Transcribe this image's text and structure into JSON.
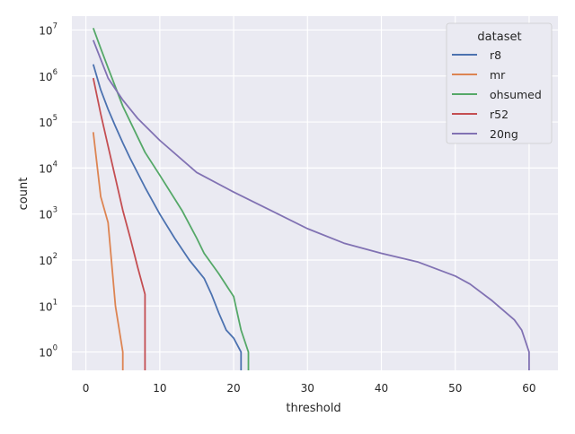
{
  "chart_data": {
    "type": "line",
    "xlabel": "threshold",
    "ylabel": "count",
    "xlim": [
      -1.9,
      63.9
    ],
    "x_ticks": [
      0,
      10,
      20,
      30,
      40,
      50,
      60
    ],
    "ylim": [
      0.4,
      20000000
    ],
    "y_scale": "log",
    "y_ticks": [
      {
        "value": 1,
        "base": "10",
        "exp": "0"
      },
      {
        "value": 10,
        "base": "10",
        "exp": "1"
      },
      {
        "value": 100,
        "base": "10",
        "exp": "2"
      },
      {
        "value": 1000,
        "base": "10",
        "exp": "3"
      },
      {
        "value": 10000,
        "base": "10",
        "exp": "4"
      },
      {
        "value": 100000,
        "base": "10",
        "exp": "5"
      },
      {
        "value": 1000000,
        "base": "10",
        "exp": "6"
      },
      {
        "value": 10000000,
        "base": "10",
        "exp": "7"
      }
    ],
    "grid": true,
    "legend": {
      "title": "dataset",
      "position": "top-right"
    },
    "series": [
      {
        "name": "r8",
        "color": "#4c72b0",
        "x": [
          1,
          2,
          3,
          4,
          5,
          6,
          8,
          10,
          12,
          14,
          16,
          17,
          18,
          19,
          20,
          21,
          21
        ],
        "y": [
          1800000,
          500000,
          190000,
          80000,
          35000,
          16000,
          3800,
          1000,
          300,
          100,
          40,
          18,
          7,
          3,
          2,
          1,
          0.4
        ]
      },
      {
        "name": "mr",
        "color": "#dd8452",
        "x": [
          1,
          2,
          3,
          4,
          5,
          5
        ],
        "y": [
          60000,
          2400,
          650,
          10,
          1,
          0.4
        ]
      },
      {
        "name": "ohsumed",
        "color": "#55a868",
        "x": [
          1,
          2,
          3,
          5,
          8,
          10,
          13,
          15,
          16,
          18,
          20,
          21,
          22,
          22
        ],
        "y": [
          11000000,
          4000000,
          1500000,
          220000,
          22000,
          7000,
          1200,
          300,
          140,
          50,
          16,
          3,
          1,
          0.4
        ]
      },
      {
        "name": "r52",
        "color": "#c44e52",
        "x": [
          1,
          2,
          3,
          4,
          5,
          6,
          7,
          8,
          8
        ],
        "y": [
          900000,
          150000,
          30000,
          6000,
          1200,
          300,
          70,
          18,
          0.4
        ]
      },
      {
        "name": "20ng",
        "color": "#8172b3",
        "x": [
          1,
          3,
          5,
          7,
          10,
          15,
          20,
          25,
          30,
          35,
          40,
          45,
          50,
          52,
          55,
          58,
          59,
          60,
          60
        ],
        "y": [
          6000000,
          900000,
          300000,
          120000,
          40000,
          8000,
          3000,
          1200,
          480,
          230,
          140,
          90,
          45,
          30,
          13,
          5,
          3,
          1,
          0.4
        ]
      }
    ]
  }
}
